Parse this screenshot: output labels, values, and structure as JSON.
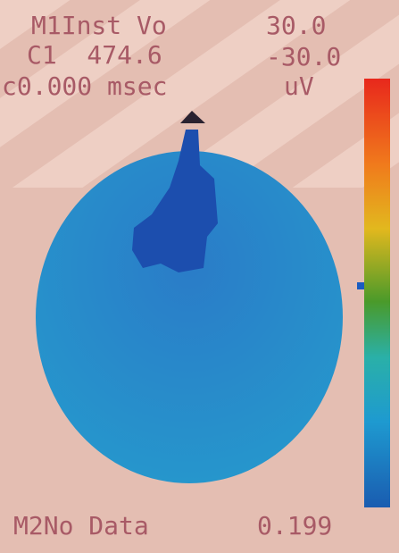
{
  "screen": {
    "top_left_1": "M1Inst Vo",
    "top_right_1": "30.0",
    "top_left_2": "C1  474.6",
    "top_right_2": "-30.0",
    "time": "c0.000 msec",
    "unit": "uV",
    "bottom_left": "M2No Data",
    "bottom_right": "0.199"
  }
}
